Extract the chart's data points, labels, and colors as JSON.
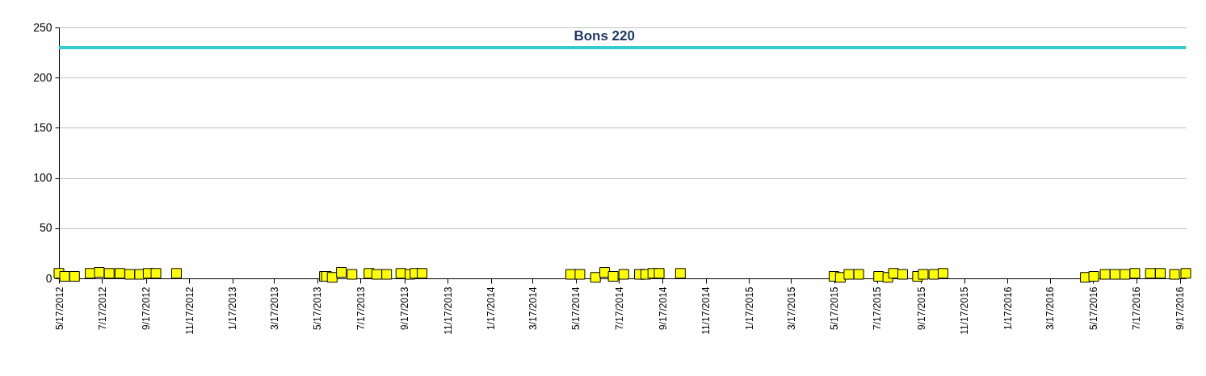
{
  "chart_data": {
    "type": "scatter",
    "marker": "square",
    "grid": "y",
    "x": [
      "2012-05-17",
      "2012-05-25",
      "2012-06-08",
      "2012-06-30",
      "2012-07-13",
      "2012-07-27",
      "2012-08-11",
      "2012-08-25",
      "2012-09-08",
      "2012-09-20",
      "2012-10-01",
      "2012-10-30",
      "2013-05-27",
      "2013-05-30",
      "2013-06-07",
      "2013-06-20",
      "2013-07-05",
      "2013-07-29",
      "2013-08-09",
      "2013-08-23",
      "2013-09-12",
      "2013-09-25",
      "2013-10-02",
      "2013-10-12",
      "2014-05-10",
      "2014-05-23",
      "2014-06-14",
      "2014-06-27",
      "2014-07-09",
      "2014-07-24",
      "2014-08-15",
      "2014-08-24",
      "2014-09-03",
      "2014-09-12",
      "2014-10-12",
      "2015-05-17",
      "2015-05-26",
      "2015-06-07",
      "2015-06-21",
      "2015-07-19",
      "2015-08-01",
      "2015-08-09",
      "2015-08-22",
      "2015-09-12",
      "2015-09-20",
      "2015-10-05",
      "2015-10-18",
      "2016-05-06",
      "2016-05-18",
      "2016-06-03",
      "2016-06-17",
      "2016-07-01",
      "2016-07-15",
      "2016-08-06",
      "2016-08-20",
      "2016-09-09",
      "2016-09-25"
    ],
    "series": [
      {
        "color": "#ffff00",
        "values": [
          5,
          2,
          2,
          5,
          6,
          5,
          5,
          4,
          4,
          5,
          5,
          5,
          2,
          2,
          1,
          6,
          4,
          5,
          4,
          4,
          5,
          4,
          5,
          5,
          4,
          4,
          1,
          6,
          2,
          4,
          4,
          4,
          5,
          5,
          5,
          2,
          1,
          4,
          4,
          2,
          1,
          5,
          4,
          2,
          4,
          4,
          5,
          1,
          2,
          4,
          4,
          4,
          5,
          5,
          5,
          4,
          5
        ]
      }
    ],
    "xlim": [
      "2012-05-17",
      "2016-09-25"
    ],
    "xticks": [
      {
        "value": "2012-05-17",
        "label": "5/17/2012"
      },
      {
        "value": "2012-07-17",
        "label": "7/17/2012"
      },
      {
        "value": "2012-09-17",
        "label": "9/17/2012"
      },
      {
        "value": "2012-11-17",
        "label": "11/17/2012"
      },
      {
        "value": "2013-01-17",
        "label": "1/17/2013"
      },
      {
        "value": "2013-03-17",
        "label": "3/17/2013"
      },
      {
        "value": "2013-05-17",
        "label": "5/17/2013"
      },
      {
        "value": "2013-07-17",
        "label": "7/17/2013"
      },
      {
        "value": "2013-09-17",
        "label": "9/17/2013"
      },
      {
        "value": "2013-11-17",
        "label": "11/17/2013"
      },
      {
        "value": "2014-01-17",
        "label": "1/17/2014"
      },
      {
        "value": "2014-03-17",
        "label": "3/17/2014"
      },
      {
        "value": "2014-05-17",
        "label": "5/17/2014"
      },
      {
        "value": "2014-07-17",
        "label": "7/17/2014"
      },
      {
        "value": "2014-09-17",
        "label": "9/17/2014"
      },
      {
        "value": "2014-11-17",
        "label": "11/17/2014"
      },
      {
        "value": "2015-01-17",
        "label": "1/17/2015"
      },
      {
        "value": "2015-03-17",
        "label": "3/17/2015"
      },
      {
        "value": "2015-05-17",
        "label": "5/17/2015"
      },
      {
        "value": "2015-07-17",
        "label": "7/17/2015"
      },
      {
        "value": "2015-09-17",
        "label": "9/17/2015"
      },
      {
        "value": "2015-11-17",
        "label": "11/17/2015"
      },
      {
        "value": "2016-01-17",
        "label": "1/17/2016"
      },
      {
        "value": "2016-03-17",
        "label": "3/17/2016"
      },
      {
        "value": "2016-05-17",
        "label": "5/17/2016"
      },
      {
        "value": "2016-07-17",
        "label": "7/17/2016"
      },
      {
        "value": "2016-09-17",
        "label": "9/17/2016"
      }
    ],
    "ylim": [
      0,
      250
    ],
    "yticks": [
      0,
      50,
      100,
      150,
      200,
      250
    ],
    "ref_lines": [
      {
        "axis": "y",
        "value": 230,
        "label": "Bons 220",
        "color": "#33cccc"
      }
    ]
  }
}
